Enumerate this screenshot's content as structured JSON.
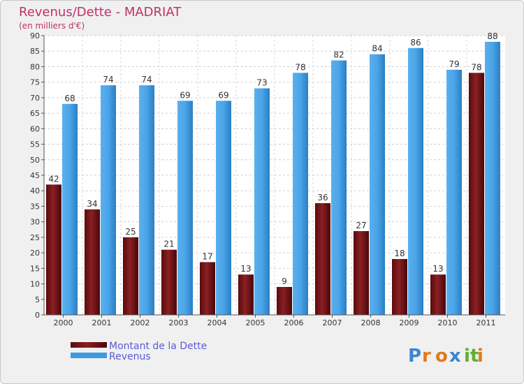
{
  "chart_data": {
    "type": "bar",
    "title": "Revenus/Dette - MADRIAT",
    "subtitle": "(en milliers d'€)",
    "categories": [
      "2000",
      "2001",
      "2002",
      "2003",
      "2004",
      "2005",
      "2006",
      "2007",
      "2008",
      "2009",
      "2010",
      "2011"
    ],
    "series": [
      {
        "name": "Montant de la Dette",
        "color": "#7a1418",
        "values": [
          42,
          34,
          25,
          21,
          17,
          13,
          9,
          36,
          27,
          18,
          13,
          78
        ]
      },
      {
        "name": "Revenus",
        "color": "#3d9ae0",
        "values": [
          68,
          74,
          74,
          69,
          69,
          73,
          78,
          82,
          84,
          86,
          79,
          88
        ]
      }
    ],
    "ylim": [
      0,
      90
    ],
    "ytick_step": 5,
    "grid": true,
    "legend_position": "bottom-left"
  },
  "logo": {
    "letters": [
      "P",
      "r",
      "o",
      "x",
      "i",
      "t",
      "i"
    ],
    "colors": [
      "#3a86d0",
      "#e07a1a",
      "#e07a1a",
      "#3a86d0",
      "#60b030",
      "#60b030",
      "#e07a1a"
    ]
  }
}
